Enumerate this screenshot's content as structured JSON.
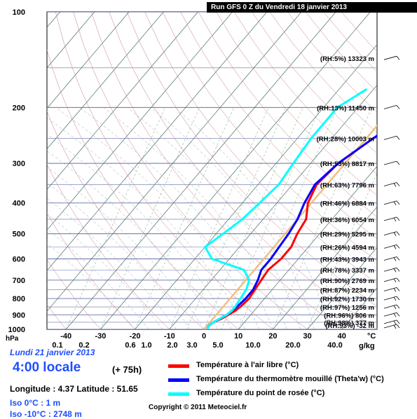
{
  "header": {
    "run_title": "Run GFS 0 Z du Vendredi 18 janvier 2013"
  },
  "info": {
    "date": "Lundi 21 janvier 2013",
    "time": "4:00 locale",
    "forecast_hours": "(+ 75h)",
    "coords": "Longitude : 4.37  Latitude : 51.65",
    "iso0": "Iso 0°C : 1 m",
    "iso10": "Iso -10°C : 2748 m",
    "copyright": "Copyright © 2011 Meteociel.fr"
  },
  "legend": [
    {
      "label": "Température à l'air libre (°C)",
      "color": "#ff0000"
    },
    {
      "label": "Température du thermomètre mouillé (Theta'w) (°C)",
      "color": "#0000ff"
    },
    {
      "label": "Température du point de rosée (°C)",
      "color": "#00ffff"
    }
  ],
  "colors": {
    "grid": "#6670a8",
    "isotherm": "#4a6a6a",
    "zero_line": "#f0c080"
  },
  "chart_data": {
    "type": "line",
    "title": "",
    "xlabel": "°C",
    "ylabel": "hPa",
    "xlim": [
      -40,
      40
    ],
    "ylim": [
      1000,
      100
    ],
    "y_ticks": [
      100,
      200,
      300,
      400,
      500,
      600,
      700,
      800,
      900,
      1000
    ],
    "x_ticks": [
      -40,
      -30,
      -20,
      -10,
      0,
      10,
      20,
      30,
      40
    ],
    "mixing_ratio_ticks": [
      "0.1",
      "0.2",
      "0.6",
      "1.0",
      "2.0",
      "3.0",
      "5.0",
      "10.0",
      "20.0",
      "40.0"
    ],
    "mixing_ratio_unit": "g/kg",
    "levels": [
      {
        "p": 140,
        "label": "(RH:5%) 13323 m"
      },
      {
        "p": 200,
        "label": "(RH:13%) 11450 m"
      },
      {
        "p": 250,
        "label": "(RH:28%) 10003 m"
      },
      {
        "p": 300,
        "label": "(RH:53%) 8817 m"
      },
      {
        "p": 350,
        "label": "(RH:63%) 7796 m"
      },
      {
        "p": 400,
        "label": "(RH:46%) 6884 m"
      },
      {
        "p": 450,
        "label": "(RH:36%) 6054 m"
      },
      {
        "p": 500,
        "label": "(RH:29%) 5295 m"
      },
      {
        "p": 550,
        "label": "(RH:26%) 4594 m"
      },
      {
        "p": 600,
        "label": "(RH:43%) 3943 m"
      },
      {
        "p": 650,
        "label": "(RH:78%) 3337 m"
      },
      {
        "p": 700,
        "label": "(RH:90%) 2769 m"
      },
      {
        "p": 750,
        "label": "(RH:87%) 2234 m"
      },
      {
        "p": 800,
        "label": "(RH:92%) 1730 m"
      },
      {
        "p": 850,
        "label": "(RH:97%) 1256 m"
      },
      {
        "p": 900,
        "label": "(RH:96%) 806 m"
      },
      {
        "p": 950,
        "label": "(RH:98%) 377 m"
      },
      {
        "p": 1000,
        "label": "(RH:93%) -32 m"
      }
    ],
    "series": [
      {
        "name": "Température à l'air libre (°C)",
        "color": "#ff0000",
        "points": [
          [
            1000,
            1
          ],
          [
            975,
            0.5
          ],
          [
            950,
            1
          ],
          [
            925,
            2.5
          ],
          [
            900,
            3.5
          ],
          [
            875,
            4.5
          ],
          [
            850,
            5
          ],
          [
            800,
            5.5
          ],
          [
            750,
            5
          ],
          [
            700,
            4.5
          ],
          [
            650,
            4
          ],
          [
            600,
            5
          ],
          [
            550,
            5
          ],
          [
            500,
            3.5
          ],
          [
            450,
            2.5
          ],
          [
            400,
            -1
          ],
          [
            350,
            -3
          ],
          [
            300,
            -2
          ],
          [
            250,
            2
          ],
          [
            200,
            9
          ],
          [
            150,
            19
          ],
          [
            115,
            23
          ]
        ]
      },
      {
        "name": "Température du thermomètre mouillé (Theta'w) (°C)",
        "color": "#0000ff",
        "points": [
          [
            1000,
            1
          ],
          [
            975,
            0.5
          ],
          [
            950,
            1
          ],
          [
            925,
            2
          ],
          [
            900,
            3
          ],
          [
            875,
            3.5
          ],
          [
            850,
            4
          ],
          [
            800,
            4.5
          ],
          [
            750,
            4.5
          ],
          [
            700,
            3.5
          ],
          [
            650,
            2
          ],
          [
            600,
            2
          ],
          [
            550,
            1.5
          ],
          [
            500,
            1
          ],
          [
            450,
            0
          ],
          [
            400,
            -2
          ],
          [
            350,
            -3.5
          ],
          [
            300,
            -2
          ],
          [
            250,
            2
          ],
          [
            200,
            8
          ],
          [
            160,
            14
          ]
        ]
      },
      {
        "name": "Température du point de rosée (°C)",
        "color": "#00ffff",
        "points": [
          [
            1000,
            1
          ],
          [
            975,
            0.5
          ],
          [
            950,
            1
          ],
          [
            925,
            2
          ],
          [
            900,
            3
          ],
          [
            875,
            3.5
          ],
          [
            850,
            3.5
          ],
          [
            800,
            3
          ],
          [
            750,
            2.5
          ],
          [
            700,
            1
          ],
          [
            650,
            -3
          ],
          [
            600,
            -15
          ],
          [
            550,
            -20
          ],
          [
            500,
            -18
          ],
          [
            450,
            -16
          ],
          [
            400,
            -15
          ],
          [
            350,
            -14
          ],
          [
            300,
            -15
          ],
          [
            250,
            -16
          ],
          [
            200,
            -16
          ],
          [
            175,
            -12
          ]
        ]
      }
    ],
    "zero_isotherm_height_m": 1,
    "minus10_isotherm_height_m": 2748
  }
}
